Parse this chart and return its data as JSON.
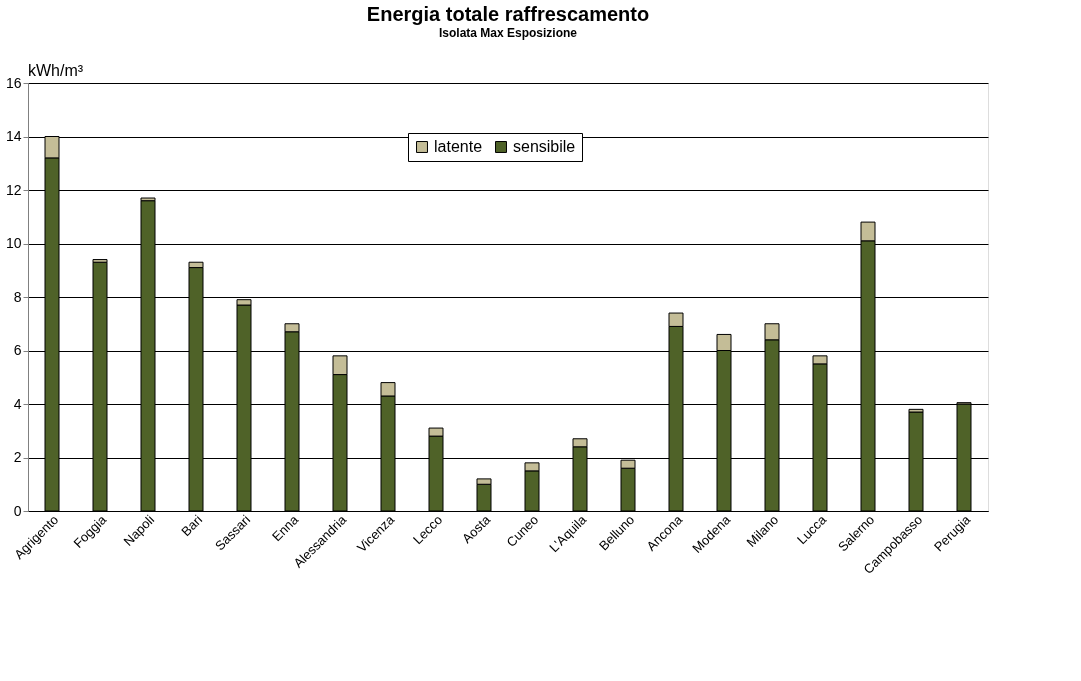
{
  "chart_data": {
    "type": "bar",
    "title": "Energia totale raffrescamento",
    "subtitle": "Isolata  Max Esposizione",
    "ylabel": "kWh/m³",
    "categories": [
      "Agrigento",
      "Foggia",
      "Napoli",
      "Bari",
      "Sassari",
      "Enna",
      "Alessandria",
      "Vicenza",
      "Lecco",
      "Aosta",
      "Cuneo",
      "L'Aquila",
      "Belluno",
      "Ancona",
      "Modena",
      "Milano",
      "Lucca",
      "Salerno",
      "Campobasso",
      "Perugia"
    ],
    "series": [
      {
        "name": "sensibile",
        "color": "#4f6228",
        "values": [
          13.2,
          9.3,
          11.6,
          9.1,
          7.7,
          6.7,
          5.1,
          4.3,
          2.8,
          1.0,
          1.5,
          2.4,
          1.6,
          6.9,
          6.0,
          6.4,
          5.5,
          10.1,
          3.7,
          4.0
        ]
      },
      {
        "name": "latente",
        "color": "#c4bd97",
        "values": [
          0.8,
          0.1,
          0.1,
          0.2,
          0.2,
          0.3,
          0.7,
          0.5,
          0.3,
          0.2,
          0.3,
          0.3,
          0.3,
          0.5,
          0.6,
          0.6,
          0.3,
          0.7,
          0.1,
          0.05
        ]
      }
    ],
    "stacked": true,
    "ylim": [
      0,
      16
    ],
    "yticks": [
      0,
      2,
      4,
      6,
      8,
      10,
      12,
      14,
      16
    ],
    "grid": "y",
    "legend": "top"
  }
}
